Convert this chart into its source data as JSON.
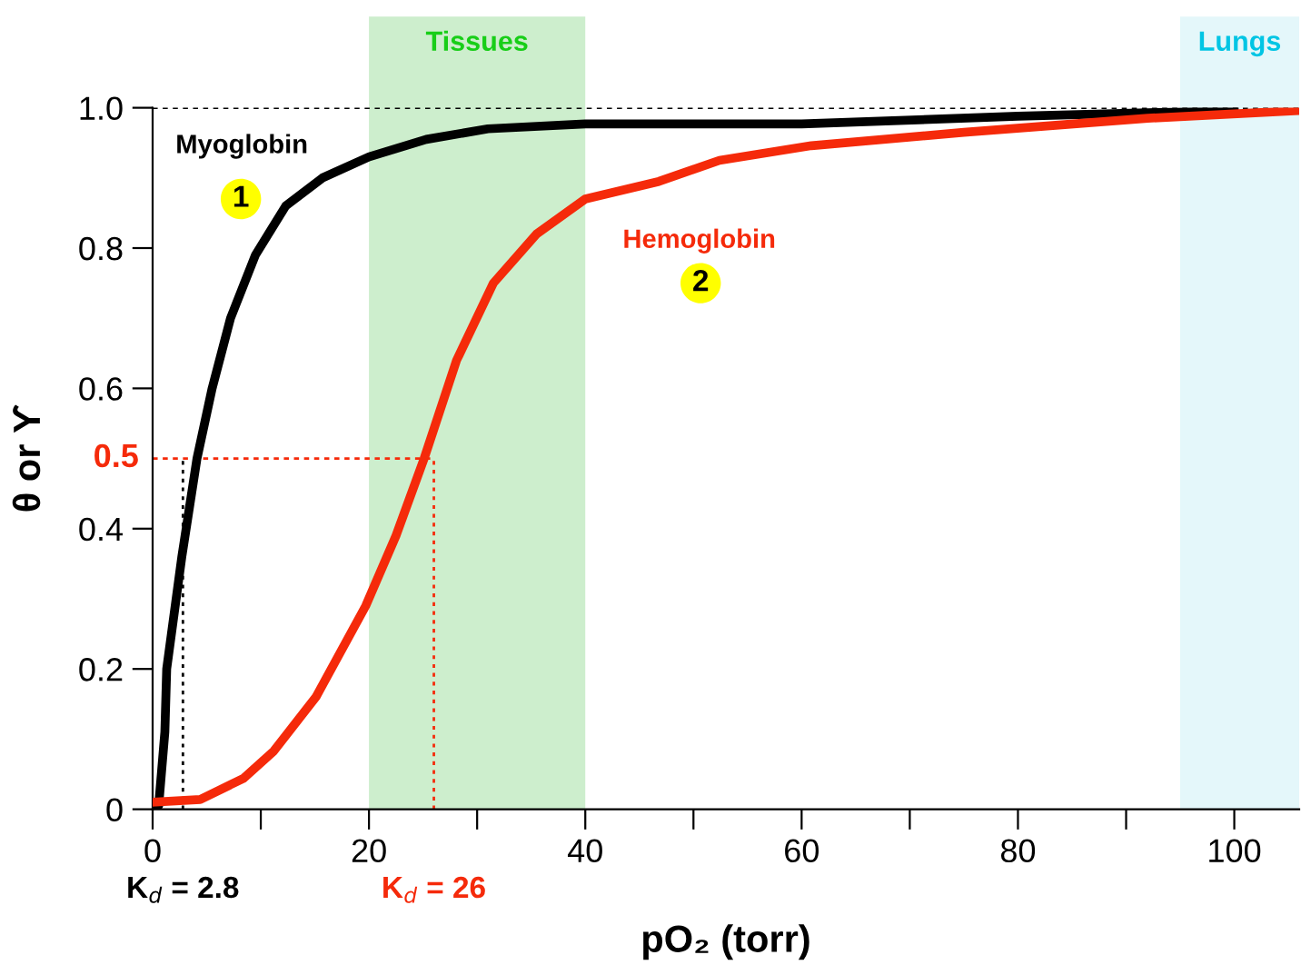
{
  "chart_data": {
    "type": "line",
    "xlabel": "pO₂ (torr)",
    "ylabel": "θ or ϒ",
    "xlim": [
      0,
      106
    ],
    "ylim": [
      0,
      1.0
    ],
    "xticks": [
      0,
      {
        "value": 10,
        "label": null
      },
      20,
      {
        "value": 30,
        "label": null
      },
      40,
      {
        "value": 50,
        "label": null
      },
      60,
      {
        "value": 70,
        "label": null
      },
      80,
      {
        "value": 90,
        "label": null
      },
      100
    ],
    "yticks": [
      {
        "value": 0,
        "label": "0"
      },
      0.2,
      0.4,
      0.6,
      0.8,
      {
        "value": 1.0,
        "label": "1.0"
      }
    ],
    "grid": false,
    "line_style": "solid",
    "marker": "none",
    "series": [
      {
        "name": "Myoglobin",
        "color": "#000000",
        "x": [
          0,
          0.56,
          1.13,
          1.3,
          2.7,
          4.1,
          5.5,
          7.2,
          9.5,
          12.3,
          15.7,
          20,
          25.3,
          31,
          40,
          60,
          80,
          100
        ],
        "values": [
          0,
          0.005,
          0.11,
          0.2,
          0.36,
          0.5,
          0.6,
          0.7,
          0.79,
          0.86,
          0.9,
          0.93,
          0.955,
          0.97,
          0.977,
          0.977,
          0.988,
          0.996
        ]
      },
      {
        "name": "Hemoglobin",
        "color": "#f52a0a",
        "x": [
          0,
          4.4,
          8.4,
          11.2,
          15.1,
          19.7,
          22.5,
          25.1,
          28.1,
          31.5,
          35.5,
          40,
          46.8,
          52.4,
          60.9,
          75,
          92,
          106
        ],
        "values": [
          0.01,
          0.014,
          0.044,
          0.083,
          0.16,
          0.29,
          0.39,
          0.5,
          0.64,
          0.75,
          0.82,
          0.87,
          0.895,
          0.925,
          0.946,
          0.965,
          0.985,
          0.996
        ]
      }
    ],
    "ref_lines": [
      {
        "axis": "y",
        "value": 1.0,
        "label": null,
        "color": "#000000",
        "line_style": "dashed"
      },
      {
        "axis": "y",
        "value": 0.5,
        "label": "0.5",
        "color": "#f52a0a",
        "line_style": "dashed"
      },
      {
        "axis": "x",
        "value": 2.8,
        "label": "K$_{d}$ = 2.8",
        "color": "#000000",
        "line_style": "dotted"
      },
      {
        "axis": "x",
        "value": 26,
        "label": "K$_{d}$ = 26",
        "color": "#f52a0a",
        "line_style": "dotted"
      }
    ],
    "bands": [
      {
        "axis": "x",
        "from": 20,
        "to": 40,
        "label": "Tissues",
        "color": "#cdeecd"
      },
      {
        "axis": "x",
        "from": 95,
        "to": 106,
        "label": "Lungs",
        "color": "#e4f7fa"
      }
    ],
    "annotations": [
      "1",
      "2"
    ]
  }
}
